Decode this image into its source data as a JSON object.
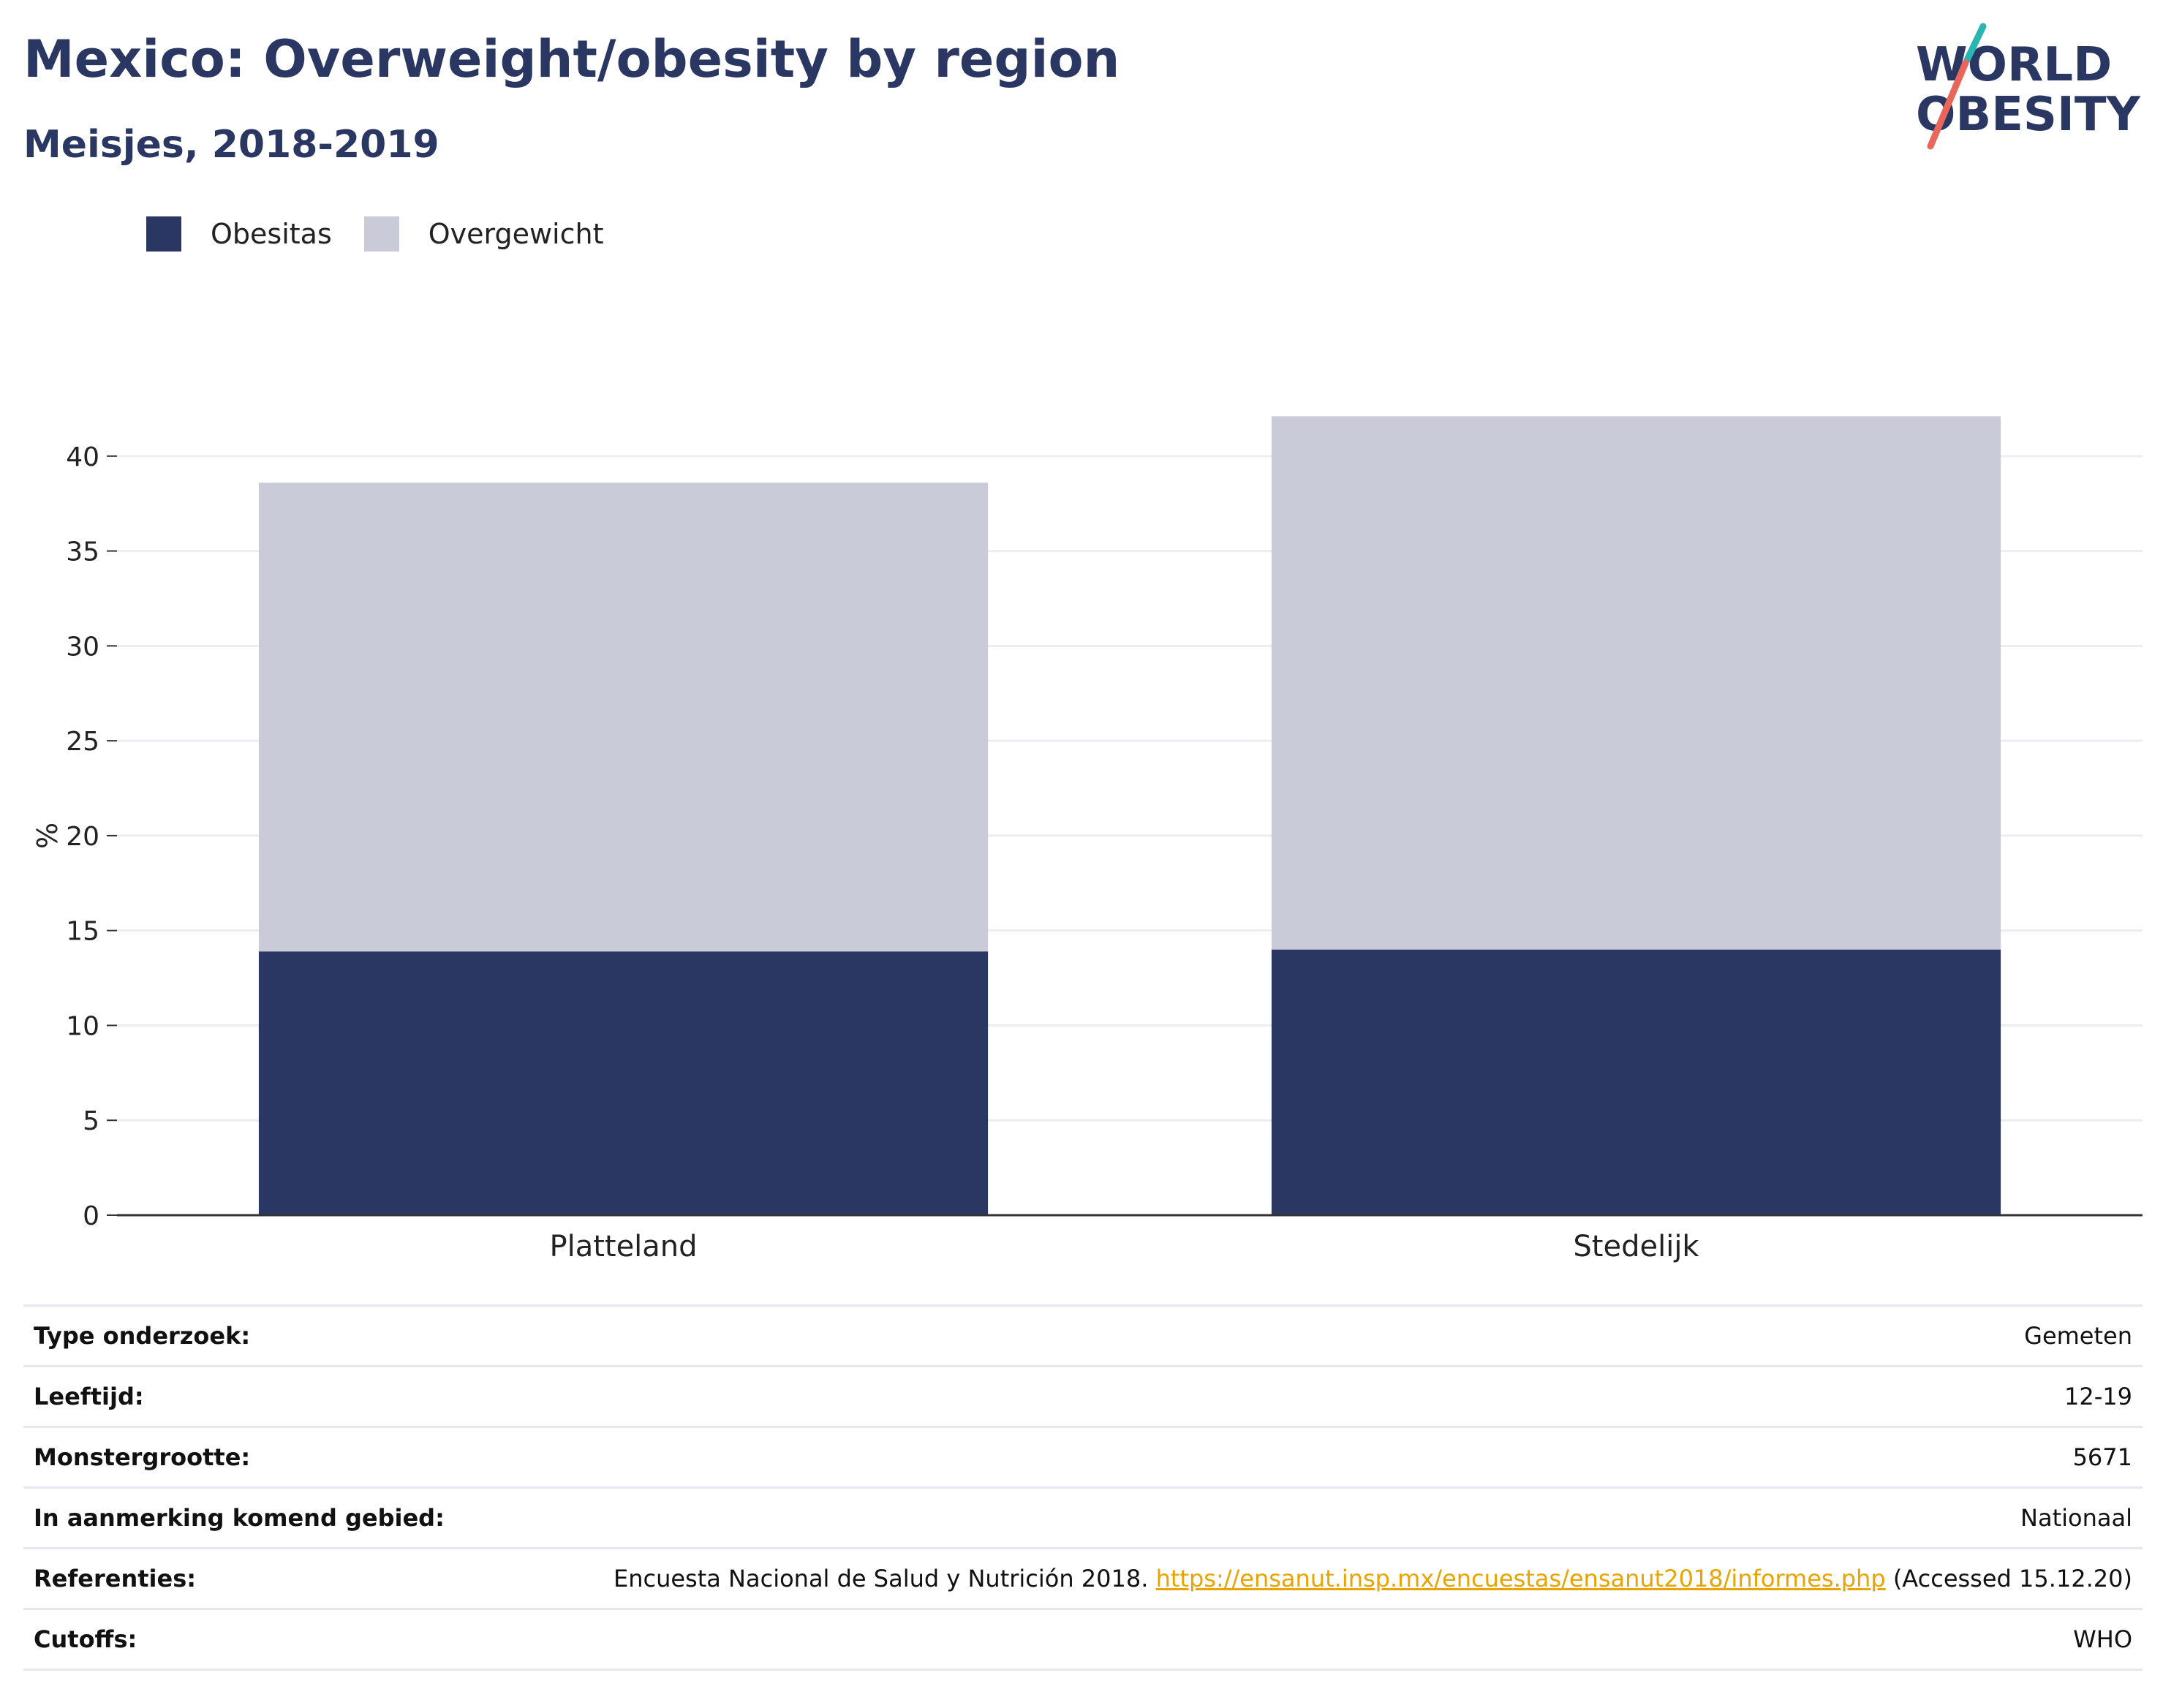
{
  "header": {
    "title": "Mexico: Overweight/obesity by region",
    "subtitle": "Meisjes, 2018-2019"
  },
  "logo": {
    "line1": "WORLD",
    "line2": "OBESITY",
    "icon": "world-obesity-logo-icon",
    "colors": {
      "text": "#2b3763",
      "slash_top": "#2bb5b0",
      "slash_bottom": "#e8665a"
    }
  },
  "legend": [
    {
      "label": "Obesitas",
      "color": "#2b3763"
    },
    {
      "label": "Overgewicht",
      "color": "#c9ccd8"
    }
  ],
  "chart_data": {
    "type": "bar",
    "stacked": true,
    "categories": [
      "Platteland",
      "Stedelijk"
    ],
    "series": [
      {
        "name": "Obesitas",
        "color": "#2b3763",
        "values": [
          13.9,
          14.0
        ]
      },
      {
        "name": "Overgewicht",
        "color": "#c9ccd8",
        "values": [
          24.7,
          28.1
        ]
      }
    ],
    "ylabel": "%",
    "xlabel": "",
    "ylim": [
      0,
      44
    ],
    "yticks": [
      0,
      5,
      10,
      15,
      20,
      25,
      30,
      35,
      40
    ],
    "grid": true,
    "legend_position": "top-left"
  },
  "info": [
    {
      "label": "Type onderzoek:",
      "value": "Gemeten"
    },
    {
      "label": "Leeftijd:",
      "value": "12-19"
    },
    {
      "label": "Monstergrootte:",
      "value": "5671"
    },
    {
      "label": "In aanmerking komend gebied:",
      "value": "Nationaal"
    },
    {
      "label": "Referenties:",
      "value": "Encuesta Nacional de Salud y Nutrición 2018.",
      "link": "https://ensanut.insp.mx/encuestas/ensanut2018/informes.php",
      "suffix": "(Accessed 15.12.20)"
    },
    {
      "label": "Cutoffs:",
      "value": "WHO"
    }
  ]
}
